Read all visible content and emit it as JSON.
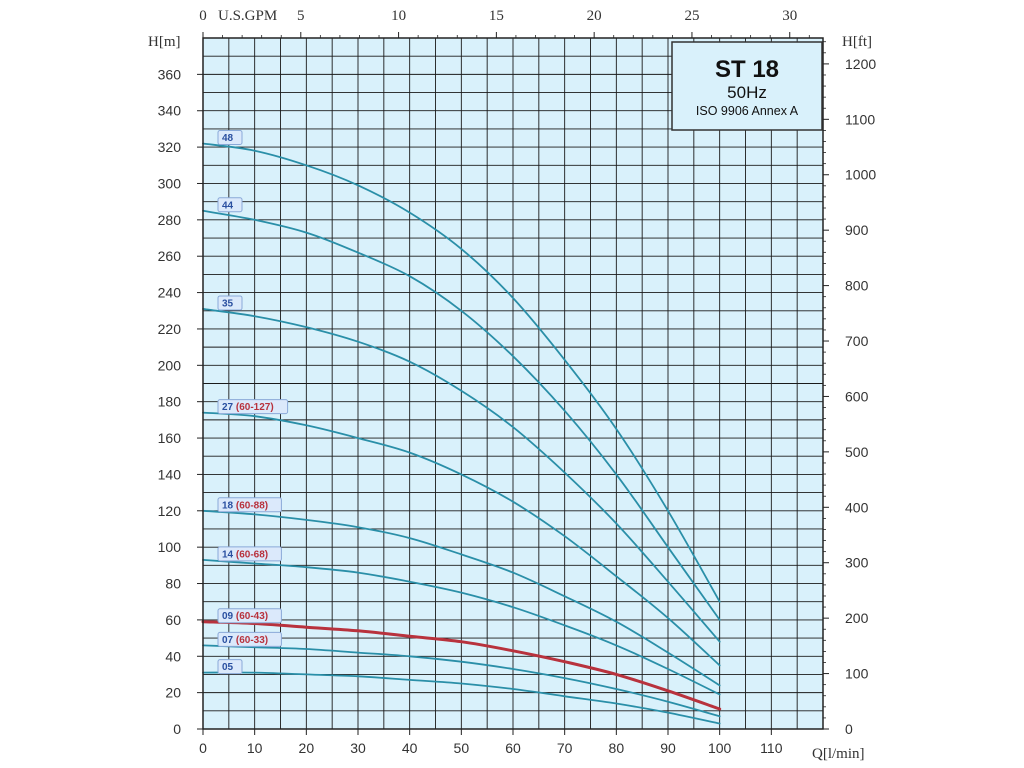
{
  "chart_data": {
    "type": "line",
    "title": "ST 18",
    "subtitle": "50Hz",
    "note": "ISO 9906 Annex A",
    "xlabel": "Q[l/min]",
    "ylabel_left": "H[m]",
    "ylabel_right": "H[ft]",
    "top_axis_label": "U.S.GPM",
    "xlim": [
      0,
      120
    ],
    "ylim": [
      0,
      380
    ],
    "x_ticks": [
      0,
      10,
      20,
      30,
      40,
      50,
      60,
      70,
      80,
      90,
      100,
      110
    ],
    "x_tick_labels": [
      "0",
      "10",
      "20",
      "30",
      "40",
      "50",
      "60",
      "70",
      "80",
      "90",
      "100",
      "110"
    ],
    "y_ticks": [
      0,
      20,
      40,
      60,
      80,
      100,
      120,
      140,
      160,
      180,
      200,
      220,
      240,
      260,
      280,
      300,
      320,
      340,
      360
    ],
    "y_tick_labels": [
      "0",
      "20",
      "40",
      "60",
      "80",
      "100",
      "120",
      "140",
      "160",
      "180",
      "200",
      "220",
      "240",
      "260",
      "280",
      "300",
      "320",
      "340",
      "360"
    ],
    "gpm_ticks": [
      0,
      5,
      10,
      15,
      20,
      25,
      30
    ],
    "gpm_tick_labels": [
      "0",
      "5",
      "10",
      "15",
      "20",
      "25",
      "30"
    ],
    "ft_ticks": [
      0,
      100,
      200,
      300,
      400,
      500,
      600,
      700,
      800,
      900,
      1000,
      1100,
      1200
    ],
    "ft_tick_labels": [
      "0",
      "100",
      "200",
      "300",
      "400",
      "500",
      "600",
      "700",
      "800",
      "900",
      "1000",
      "1100",
      "1200"
    ],
    "grid": true,
    "colors": {
      "plot_bg": "#d9f1fb",
      "grid": "#1a1a1a",
      "curve": "#2a8fa8",
      "highlight_curve": "#b8323d",
      "label_blue": "#2a4fa0",
      "label_red": "#b8323d"
    },
    "series": [
      {
        "name": "48",
        "label_main": "48",
        "label_sub": "",
        "highlight": false,
        "x": [
          0,
          10,
          20,
          30,
          40,
          50,
          60,
          70,
          80,
          90,
          100
        ],
        "y": [
          322,
          318,
          310,
          299,
          284,
          264,
          237,
          203,
          165,
          120,
          70
        ]
      },
      {
        "name": "44",
        "label_main": "44",
        "label_sub": "",
        "highlight": false,
        "x": [
          0,
          10,
          20,
          30,
          40,
          50,
          60,
          70,
          80,
          90,
          100
        ],
        "y": [
          285,
          280,
          273,
          262,
          249,
          230,
          205,
          175,
          140,
          100,
          60
        ]
      },
      {
        "name": "35",
        "label_main": "35",
        "label_sub": "",
        "highlight": false,
        "x": [
          0,
          10,
          20,
          30,
          40,
          50,
          60,
          70,
          80,
          90,
          100
        ],
        "y": [
          231,
          227,
          221,
          213,
          202,
          186,
          166,
          141,
          113,
          81,
          48
        ]
      },
      {
        "name": "27 (60-127)",
        "label_main": "27",
        "label_sub": "(60-127)",
        "highlight": false,
        "x": [
          0,
          10,
          20,
          30,
          40,
          50,
          60,
          70,
          80,
          90,
          100
        ],
        "y": [
          174,
          172,
          167,
          160,
          152,
          140,
          125,
          106,
          84,
          61,
          35
        ]
      },
      {
        "name": "18 (60-88)",
        "label_main": "18",
        "label_sub": "(60-88)",
        "highlight": false,
        "x": [
          0,
          10,
          20,
          30,
          40,
          50,
          60,
          70,
          80,
          90,
          100
        ],
        "y": [
          120,
          118,
          115,
          111,
          105,
          96,
          86,
          73,
          59,
          42,
          24
        ]
      },
      {
        "name": "14 (60-68)",
        "label_main": "14",
        "label_sub": "(60-68)",
        "highlight": false,
        "x": [
          0,
          10,
          20,
          30,
          40,
          50,
          60,
          70,
          80,
          90,
          100
        ],
        "y": [
          93,
          91,
          89,
          86,
          81,
          75,
          67,
          57,
          46,
          33,
          19
        ]
      },
      {
        "name": "09 (60-43)",
        "label_main": "09",
        "label_sub": "(60-43)",
        "highlight": true,
        "x": [
          0,
          10,
          20,
          30,
          40,
          50,
          60,
          70,
          80,
          90,
          100
        ],
        "y": [
          59,
          58,
          56,
          54,
          51,
          48,
          43,
          37,
          30,
          21,
          11
        ]
      },
      {
        "name": "07 (60-33)",
        "label_main": "07",
        "label_sub": "(60-33)",
        "highlight": false,
        "x": [
          0,
          10,
          20,
          30,
          40,
          50,
          60,
          70,
          80,
          90,
          100
        ],
        "y": [
          46,
          45,
          44,
          42,
          40,
          37,
          33,
          28,
          22,
          15,
          7
        ]
      },
      {
        "name": "05",
        "label_main": "05",
        "label_sub": "",
        "highlight": false,
        "x": [
          0,
          10,
          20,
          30,
          40,
          50,
          60,
          70,
          80,
          90,
          100
        ],
        "y": [
          31,
          31,
          30,
          29,
          27,
          25,
          22,
          18,
          14,
          9,
          3
        ]
      }
    ]
  }
}
